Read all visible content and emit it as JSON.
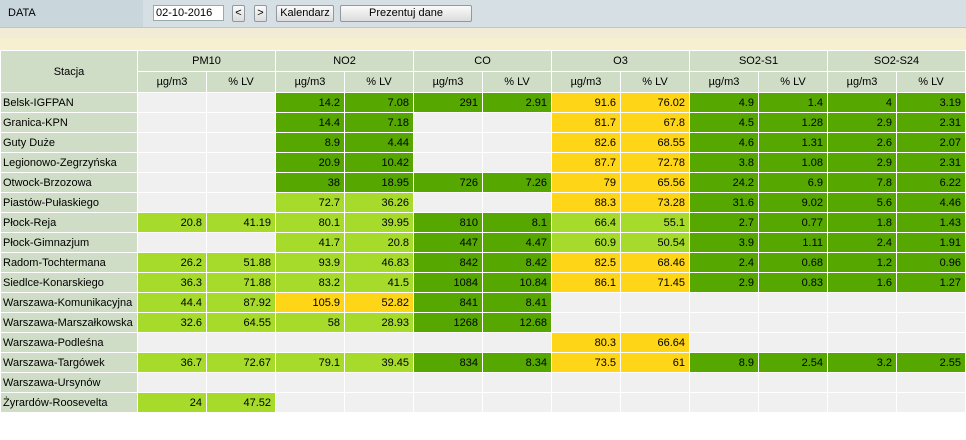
{
  "header": {
    "label": "DATA",
    "date_value": "02-10-2016",
    "prev_label": "<",
    "next_label": ">",
    "calendar_label": "Kalendarz",
    "present_label": "Prezentuj dane"
  },
  "table": {
    "station_header": "Stacja",
    "pollutants": [
      "PM10",
      "NO2",
      "CO",
      "O3",
      "SO2-S1",
      "SO2-S24"
    ],
    "units": [
      "µg/m3",
      "% LV"
    ],
    "level_colors": {
      "empty": "#f0f0f0",
      "dark-green": "#56a800",
      "light-green": "#a6db2c",
      "yellow": "#ffd617"
    },
    "rows": [
      {
        "station": "Belsk-IGFPAN",
        "cells": [
          {
            "ug": "",
            "lv": "",
            "level": "empty"
          },
          {
            "ug": "14.2",
            "lv": "7.08",
            "level": "dark-green"
          },
          {
            "ug": "291",
            "lv": "2.91",
            "level": "dark-green"
          },
          {
            "ug": "91.6",
            "lv": "76.02",
            "level": "yellow"
          },
          {
            "ug": "4.9",
            "lv": "1.4",
            "level": "dark-green"
          },
          {
            "ug": "4",
            "lv": "3.19",
            "level": "dark-green"
          }
        ]
      },
      {
        "station": "Granica-KPN",
        "cells": [
          {
            "ug": "",
            "lv": "",
            "level": "empty"
          },
          {
            "ug": "14.4",
            "lv": "7.18",
            "level": "dark-green"
          },
          {
            "ug": "",
            "lv": "",
            "level": "empty"
          },
          {
            "ug": "81.7",
            "lv": "67.8",
            "level": "yellow"
          },
          {
            "ug": "4.5",
            "lv": "1.28",
            "level": "dark-green"
          },
          {
            "ug": "2.9",
            "lv": "2.31",
            "level": "dark-green"
          }
        ]
      },
      {
        "station": "Guty Duże",
        "cells": [
          {
            "ug": "",
            "lv": "",
            "level": "empty"
          },
          {
            "ug": "8.9",
            "lv": "4.44",
            "level": "dark-green"
          },
          {
            "ug": "",
            "lv": "",
            "level": "empty"
          },
          {
            "ug": "82.6",
            "lv": "68.55",
            "level": "yellow"
          },
          {
            "ug": "4.6",
            "lv": "1.31",
            "level": "dark-green"
          },
          {
            "ug": "2.6",
            "lv": "2.07",
            "level": "dark-green"
          }
        ]
      },
      {
        "station": "Legionowo-Zegrzyńska",
        "cells": [
          {
            "ug": "",
            "lv": "",
            "level": "empty"
          },
          {
            "ug": "20.9",
            "lv": "10.42",
            "level": "dark-green"
          },
          {
            "ug": "",
            "lv": "",
            "level": "empty"
          },
          {
            "ug": "87.7",
            "lv": "72.78",
            "level": "yellow"
          },
          {
            "ug": "3.8",
            "lv": "1.08",
            "level": "dark-green"
          },
          {
            "ug": "2.9",
            "lv": "2.31",
            "level": "dark-green"
          }
        ]
      },
      {
        "station": "Otwock-Brzozowa",
        "cells": [
          {
            "ug": "",
            "lv": "",
            "level": "empty"
          },
          {
            "ug": "38",
            "lv": "18.95",
            "level": "dark-green"
          },
          {
            "ug": "726",
            "lv": "7.26",
            "level": "dark-green"
          },
          {
            "ug": "79",
            "lv": "65.56",
            "level": "yellow"
          },
          {
            "ug": "24.2",
            "lv": "6.9",
            "level": "dark-green"
          },
          {
            "ug": "7.8",
            "lv": "6.22",
            "level": "dark-green"
          }
        ]
      },
      {
        "station": "Piastów-Pułaskiego",
        "cells": [
          {
            "ug": "",
            "lv": "",
            "level": "empty"
          },
          {
            "ug": "72.7",
            "lv": "36.26",
            "level": "light-green"
          },
          {
            "ug": "",
            "lv": "",
            "level": "empty"
          },
          {
            "ug": "88.3",
            "lv": "73.28",
            "level": "yellow"
          },
          {
            "ug": "31.6",
            "lv": "9.02",
            "level": "dark-green"
          },
          {
            "ug": "5.6",
            "lv": "4.46",
            "level": "dark-green"
          }
        ]
      },
      {
        "station": "Płock-Reja",
        "cells": [
          {
            "ug": "20.8",
            "lv": "41.19",
            "level": "light-green"
          },
          {
            "ug": "80.1",
            "lv": "39.95",
            "level": "light-green"
          },
          {
            "ug": "810",
            "lv": "8.1",
            "level": "dark-green"
          },
          {
            "ug": "66.4",
            "lv": "55.1",
            "level": "light-green"
          },
          {
            "ug": "2.7",
            "lv": "0.77",
            "level": "dark-green"
          },
          {
            "ug": "1.8",
            "lv": "1.43",
            "level": "dark-green"
          }
        ]
      },
      {
        "station": "Płock-Gimnazjum",
        "cells": [
          {
            "ug": "",
            "lv": "",
            "level": "empty"
          },
          {
            "ug": "41.7",
            "lv": "20.8",
            "level": "light-green"
          },
          {
            "ug": "447",
            "lv": "4.47",
            "level": "dark-green"
          },
          {
            "ug": "60.9",
            "lv": "50.54",
            "level": "light-green"
          },
          {
            "ug": "3.9",
            "lv": "1.11",
            "level": "dark-green"
          },
          {
            "ug": "2.4",
            "lv": "1.91",
            "level": "dark-green"
          }
        ]
      },
      {
        "station": "Radom-Tochtermana",
        "cells": [
          {
            "ug": "26.2",
            "lv": "51.88",
            "level": "light-green"
          },
          {
            "ug": "93.9",
            "lv": "46.83",
            "level": "light-green"
          },
          {
            "ug": "842",
            "lv": "8.42",
            "level": "dark-green"
          },
          {
            "ug": "82.5",
            "lv": "68.46",
            "level": "yellow"
          },
          {
            "ug": "2.4",
            "lv": "0.68",
            "level": "dark-green"
          },
          {
            "ug": "1.2",
            "lv": "0.96",
            "level": "dark-green"
          }
        ]
      },
      {
        "station": "Siedlce-Konarskiego",
        "cells": [
          {
            "ug": "36.3",
            "lv": "71.88",
            "level": "light-green"
          },
          {
            "ug": "83.2",
            "lv": "41.5",
            "level": "light-green"
          },
          {
            "ug": "1084",
            "lv": "10.84",
            "level": "dark-green"
          },
          {
            "ug": "86.1",
            "lv": "71.45",
            "level": "yellow"
          },
          {
            "ug": "2.9",
            "lv": "0.83",
            "level": "dark-green"
          },
          {
            "ug": "1.6",
            "lv": "1.27",
            "level": "dark-green"
          }
        ]
      },
      {
        "station": "Warszawa-Komunikacyjna",
        "cells": [
          {
            "ug": "44.4",
            "lv": "87.92",
            "level": "light-green"
          },
          {
            "ug": "105.9",
            "lv": "52.82",
            "level": "yellow"
          },
          {
            "ug": "841",
            "lv": "8.41",
            "level": "dark-green"
          },
          {
            "ug": "",
            "lv": "",
            "level": "empty"
          },
          {
            "ug": "",
            "lv": "",
            "level": "empty"
          },
          {
            "ug": "",
            "lv": "",
            "level": "empty"
          }
        ]
      },
      {
        "station": "Warszawa-Marszałkowska",
        "cells": [
          {
            "ug": "32.6",
            "lv": "64.55",
            "level": "light-green"
          },
          {
            "ug": "58",
            "lv": "28.93",
            "level": "light-green"
          },
          {
            "ug": "1268",
            "lv": "12.68",
            "level": "dark-green"
          },
          {
            "ug": "",
            "lv": "",
            "level": "empty"
          },
          {
            "ug": "",
            "lv": "",
            "level": "empty"
          },
          {
            "ug": "",
            "lv": "",
            "level": "empty"
          }
        ]
      },
      {
        "station": "Warszawa-Podleśna",
        "cells": [
          {
            "ug": "",
            "lv": "",
            "level": "empty"
          },
          {
            "ug": "",
            "lv": "",
            "level": "empty"
          },
          {
            "ug": "",
            "lv": "",
            "level": "empty"
          },
          {
            "ug": "80.3",
            "lv": "66.64",
            "level": "yellow"
          },
          {
            "ug": "",
            "lv": "",
            "level": "empty"
          },
          {
            "ug": "",
            "lv": "",
            "level": "empty"
          }
        ]
      },
      {
        "station": "Warszawa-Targówek",
        "cells": [
          {
            "ug": "36.7",
            "lv": "72.67",
            "level": "light-green"
          },
          {
            "ug": "79.1",
            "lv": "39.45",
            "level": "light-green"
          },
          {
            "ug": "834",
            "lv": "8.34",
            "level": "dark-green"
          },
          {
            "ug": "73.5",
            "lv": "61",
            "level": "yellow"
          },
          {
            "ug": "8.9",
            "lv": "2.54",
            "level": "dark-green"
          },
          {
            "ug": "3.2",
            "lv": "2.55",
            "level": "dark-green"
          }
        ]
      },
      {
        "station": "Warszawa-Ursynów",
        "cells": [
          {
            "ug": "",
            "lv": "",
            "level": "empty"
          },
          {
            "ug": "",
            "lv": "",
            "level": "empty"
          },
          {
            "ug": "",
            "lv": "",
            "level": "empty"
          },
          {
            "ug": "",
            "lv": "",
            "level": "empty"
          },
          {
            "ug": "",
            "lv": "",
            "level": "empty"
          },
          {
            "ug": "",
            "lv": "",
            "level": "empty"
          }
        ]
      },
      {
        "station": "Żyrardów-Roosevelta",
        "cells": [
          {
            "ug": "24",
            "lv": "47.52",
            "level": "light-green"
          },
          {
            "ug": "",
            "lv": "",
            "level": "empty"
          },
          {
            "ug": "",
            "lv": "",
            "level": "empty"
          },
          {
            "ug": "",
            "lv": "",
            "level": "empty"
          },
          {
            "ug": "",
            "lv": "",
            "level": "empty"
          },
          {
            "ug": "",
            "lv": "",
            "level": "empty"
          }
        ]
      }
    ]
  }
}
